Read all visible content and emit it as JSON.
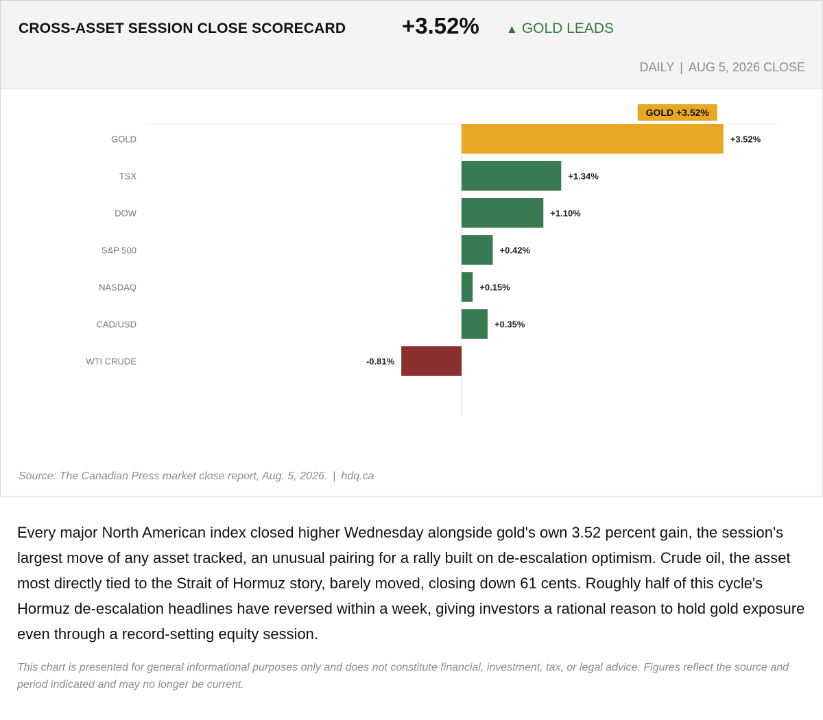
{
  "header": {
    "title": "CROSS-ASSET SESSION CLOSE SCORECARD",
    "headline_value": "+3.52%",
    "leader_arrow": "▲",
    "leader_text": "GOLD LEADS",
    "period_label": "DAILY",
    "period_separator": "|",
    "period_date": "AUG 5, 2026 CLOSE"
  },
  "chart_data": {
    "type": "bar",
    "orientation": "horizontal",
    "title": "CROSS-ASSET SESSION CLOSE SCORECARD",
    "categories": [
      "GOLD",
      "TSX",
      "DOW",
      "S&P 500",
      "NASDAQ",
      "CAD/USD",
      "WTI CRUDE"
    ],
    "values": [
      3.52,
      1.34,
      1.1,
      0.42,
      0.15,
      0.35,
      -0.81
    ],
    "value_labels": [
      "+3.52%",
      "+1.34%",
      "+1.10%",
      "+0.42%",
      "+0.15%",
      "+0.35%",
      "-0.81%"
    ],
    "xlim": [
      -4.26,
      4.26
    ],
    "unit": "%",
    "grid": false,
    "callout": "GOLD +3.52%",
    "colors": {
      "highlight": "#e8a825",
      "positive": "#3a7a52",
      "negative": "#8a3030",
      "zero_line": "#cccccc"
    }
  },
  "source": {
    "text": "Source: The Canadian Press market close report, Aug. 5, 2026.",
    "separator": "|",
    "site": "hdq.ca"
  },
  "body_text": "Every major North American index closed higher Wednesday alongside gold's own 3.52 percent gain, the session's largest move of any asset tracked, an unusual pairing for a rally built on de-escalation optimism. Crude oil, the asset most directly tied to the Strait of Hormuz story, barely moved, closing down 61 cents. Roughly half of this cycle's Hormuz de-escalation headlines have reversed within a week, giving investors a rational reason to hold gold exposure even through a record-setting equity session.",
  "disclaimer": "This chart is presented for general informational purposes only and does not constitute financial, investment, tax, or legal advice. Figures reflect the source and period indicated and may no longer be current."
}
